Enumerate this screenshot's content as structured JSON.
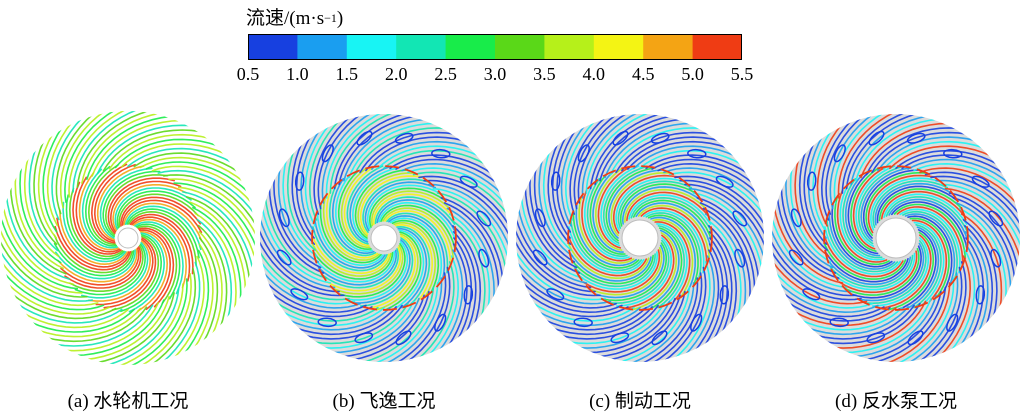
{
  "legend": {
    "title_prefix": "流速/(m·s",
    "title_exponent": "−1",
    "title_suffix": ")",
    "ticks": [
      "0.5",
      "1.0",
      "1.5",
      "2.0",
      "2.5",
      "3.0",
      "3.5",
      "4.0",
      "4.5",
      "5.0",
      "5.5"
    ],
    "colors": [
      "#1740e0",
      "#1a9ef0",
      "#18f4f4",
      "#12e6b4",
      "#18ec4a",
      "#5ad818",
      "#b6f01a",
      "#f4f414",
      "#f4a414",
      "#ef3c14"
    ]
  },
  "panels": [
    {
      "caption": "(a) 水轮机工况"
    },
    {
      "caption": "(b) 飞逸工况"
    },
    {
      "caption": "(c) 制动工况"
    },
    {
      "caption": "(d) 反水泵工况"
    }
  ]
}
